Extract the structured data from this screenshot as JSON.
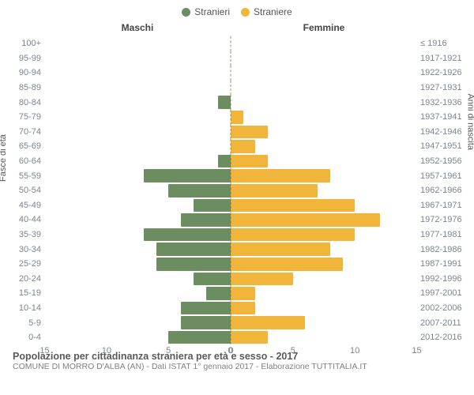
{
  "chart": {
    "type": "population-pyramid",
    "legend": {
      "male": {
        "label": "Stranieri",
        "color": "#6b8d5f"
      },
      "female": {
        "label": "Straniere",
        "color": "#f2b53b"
      }
    },
    "headers": {
      "left": "Maschi",
      "right": "Femmine"
    },
    "axis_titles": {
      "left": "Fasce di età",
      "right": "Anni di nascita"
    },
    "xlim": 15,
    "xticks_left": [
      "15",
      "10",
      "5",
      "0"
    ],
    "xticks_right": [
      "0",
      "5",
      "10",
      "15"
    ],
    "background_color": "#ffffff",
    "tick_color": "#7d8590",
    "rows": [
      {
        "age": "100+",
        "birth": "≤ 1916",
        "m": 0,
        "f": 0
      },
      {
        "age": "95-99",
        "birth": "1917-1921",
        "m": 0,
        "f": 0
      },
      {
        "age": "90-94",
        "birth": "1922-1926",
        "m": 0,
        "f": 0
      },
      {
        "age": "85-89",
        "birth": "1927-1931",
        "m": 0,
        "f": 0
      },
      {
        "age": "80-84",
        "birth": "1932-1936",
        "m": 1,
        "f": 0
      },
      {
        "age": "75-79",
        "birth": "1937-1941",
        "m": 0,
        "f": 1
      },
      {
        "age": "70-74",
        "birth": "1942-1946",
        "m": 0,
        "f": 3
      },
      {
        "age": "65-69",
        "birth": "1947-1951",
        "m": 0,
        "f": 2
      },
      {
        "age": "60-64",
        "birth": "1952-1956",
        "m": 1,
        "f": 3
      },
      {
        "age": "55-59",
        "birth": "1957-1961",
        "m": 7,
        "f": 8
      },
      {
        "age": "50-54",
        "birth": "1962-1966",
        "m": 5,
        "f": 7
      },
      {
        "age": "45-49",
        "birth": "1967-1971",
        "m": 3,
        "f": 10
      },
      {
        "age": "40-44",
        "birth": "1972-1976",
        "m": 4,
        "f": 12
      },
      {
        "age": "35-39",
        "birth": "1977-1981",
        "m": 7,
        "f": 10
      },
      {
        "age": "30-34",
        "birth": "1982-1986",
        "m": 6,
        "f": 8
      },
      {
        "age": "25-29",
        "birth": "1987-1991",
        "m": 6,
        "f": 9
      },
      {
        "age": "20-24",
        "birth": "1992-1996",
        "m": 3,
        "f": 5
      },
      {
        "age": "15-19",
        "birth": "1997-2001",
        "m": 2,
        "f": 2
      },
      {
        "age": "10-14",
        "birth": "2002-2006",
        "m": 4,
        "f": 2
      },
      {
        "age": "5-9",
        "birth": "2007-2011",
        "m": 4,
        "f": 6
      },
      {
        "age": "0-4",
        "birth": "2012-2016",
        "m": 5,
        "f": 3
      }
    ]
  },
  "footer": {
    "title": "Popolazione per cittadinanza straniera per età e sesso - 2017",
    "subtitle": "COMUNE DI MORRO D'ALBA (AN) - Dati ISTAT 1° gennaio 2017 - Elaborazione TUTTITALIA.IT"
  }
}
